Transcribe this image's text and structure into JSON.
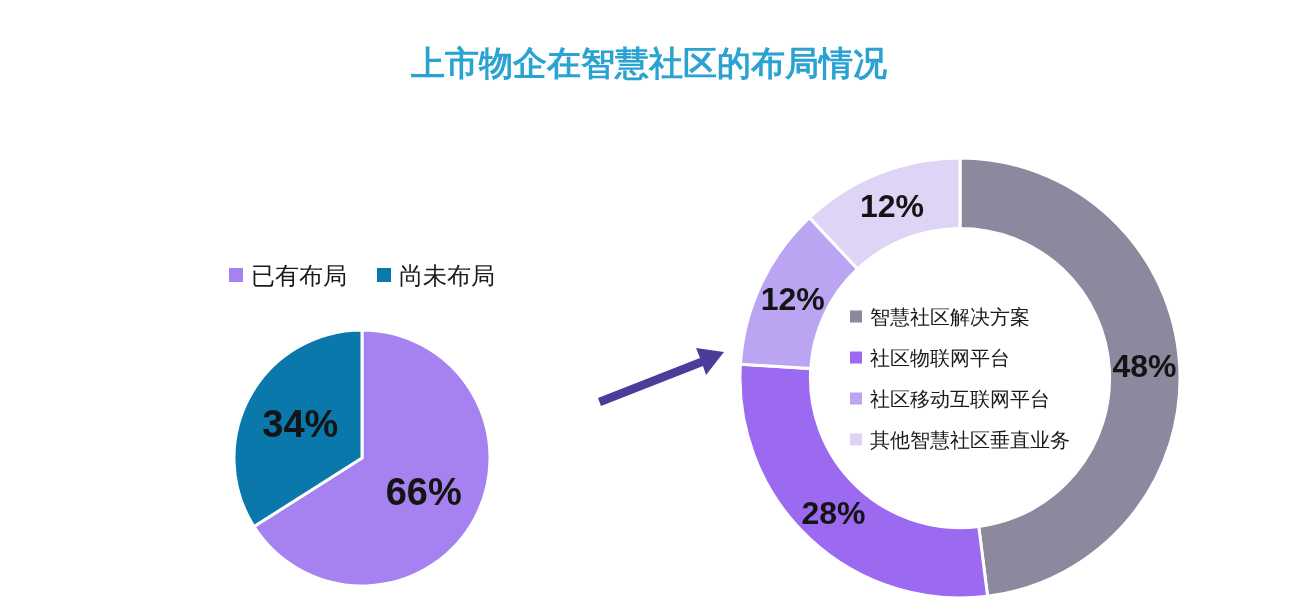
{
  "chart_data": [
    {
      "type": "pie",
      "title": "上市物企在智慧社区的布局情况",
      "categories": [
        "已有布局",
        "尚未布局"
      ],
      "values": [
        66,
        34
      ],
      "colors": [
        "#a582f0",
        "#0a78aa"
      ],
      "value_labels": [
        "66%",
        "34%"
      ],
      "legend": "top"
    },
    {
      "type": "donut",
      "categories": [
        "智慧社区解决方案",
        "社区物联网平台",
        "社区移动互联网平台",
        "其他智慧社区垂直业务"
      ],
      "values": [
        48,
        28,
        12,
        12
      ],
      "colors": [
        "#8c889e",
        "#9b6af0",
        "#bba5f2",
        "#ddd4f6"
      ],
      "value_labels": [
        "48%",
        "28%",
        "12%",
        "12%"
      ],
      "legend": "center"
    }
  ]
}
